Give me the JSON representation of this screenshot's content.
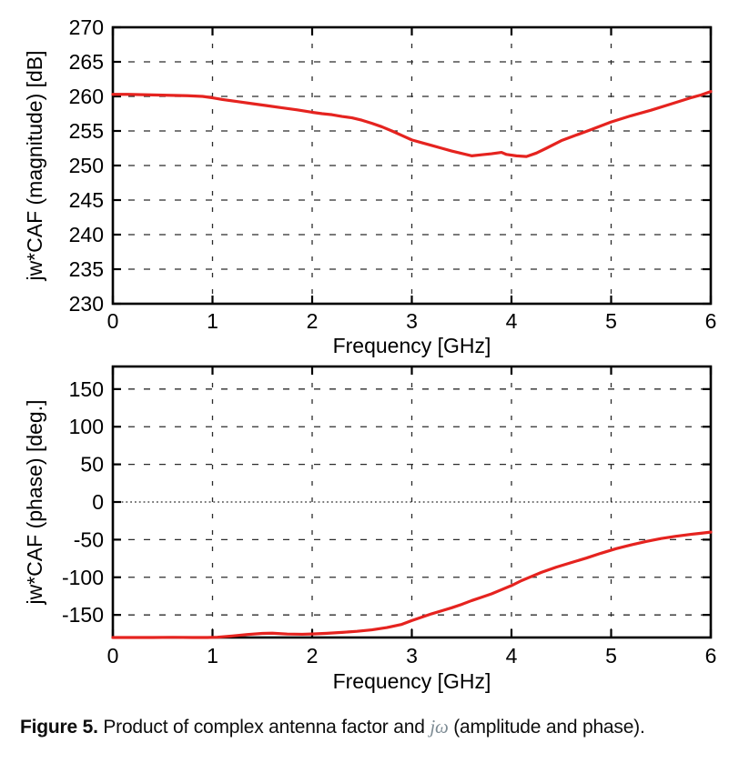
{
  "caption": {
    "label": "Figure 5.",
    "text_before": " Product of complex antenna factor and ",
    "math": "jω",
    "text_after": " (amplitude and phase)."
  },
  "chart_data": [
    {
      "type": "line",
      "title": "",
      "xlabel": "Frequency [GHz]",
      "ylabel": "jw*CAF (magnitude) [dB]",
      "xlim": [
        0,
        6
      ],
      "ylim": [
        230,
        270
      ],
      "xticks": [
        0,
        1,
        2,
        3,
        4,
        5,
        6
      ],
      "yticks": [
        230,
        235,
        240,
        245,
        250,
        255,
        260,
        265,
        270
      ],
      "grid": "dashed",
      "legend": "none",
      "line_color": "#e5231f",
      "grid_color": "#2b2b2b",
      "series": [
        {
          "name": "jw*CAF magnitude",
          "x": [
            0,
            0.15,
            0.3,
            0.45,
            0.6,
            0.75,
            0.9,
            1.0,
            1.1,
            1.25,
            1.4,
            1.55,
            1.7,
            1.85,
            2.0,
            2.1,
            2.2,
            2.3,
            2.4,
            2.5,
            2.6,
            2.7,
            2.8,
            2.9,
            3.0,
            3.1,
            3.2,
            3.3,
            3.4,
            3.5,
            3.6,
            3.7,
            3.8,
            3.9,
            3.95,
            4.05,
            4.15,
            4.25,
            4.35,
            4.5,
            4.65,
            4.8,
            5.0,
            5.2,
            5.4,
            5.6,
            5.8,
            5.9,
            6.0
          ],
          "y": [
            260.3,
            260.3,
            260.25,
            260.2,
            260.15,
            260.1,
            260.0,
            259.8,
            259.55,
            259.25,
            258.95,
            258.65,
            258.35,
            258.05,
            257.7,
            257.5,
            257.35,
            257.1,
            256.9,
            256.55,
            256.1,
            255.6,
            255.0,
            254.35,
            253.7,
            253.3,
            252.9,
            252.5,
            252.1,
            251.75,
            251.4,
            251.55,
            251.7,
            251.9,
            251.6,
            251.4,
            251.3,
            251.8,
            252.5,
            253.6,
            254.4,
            255.2,
            256.3,
            257.2,
            258.0,
            258.9,
            259.8,
            260.2,
            260.7
          ]
        }
      ]
    },
    {
      "type": "line",
      "title": "",
      "xlabel": "Frequency [GHz]",
      "ylabel": "jw*CAF (phase) [deg.]",
      "xlim": [
        0,
        6
      ],
      "ylim": [
        -180,
        180
      ],
      "xticks": [
        0,
        1,
        2,
        3,
        4,
        5,
        6
      ],
      "yticks": [
        -150,
        -100,
        -50,
        0,
        50,
        100,
        150
      ],
      "grid": "dashed",
      "zero_line": "dotted",
      "legend": "none",
      "line_color": "#e5231f",
      "grid_color": "#2b2b2b",
      "series": [
        {
          "name": "jw*CAF phase",
          "x": [
            0,
            0.2,
            0.4,
            0.6,
            0.8,
            0.95,
            1.05,
            1.2,
            1.35,
            1.5,
            1.6,
            1.75,
            1.9,
            2.0,
            2.15,
            2.3,
            2.45,
            2.6,
            2.75,
            2.9,
            3.0,
            3.1,
            3.2,
            3.3,
            3.4,
            3.5,
            3.6,
            3.7,
            3.8,
            3.9,
            4.0,
            4.1,
            4.2,
            4.3,
            4.45,
            4.6,
            4.75,
            4.9,
            5.05,
            5.2,
            5.35,
            5.5,
            5.65,
            5.8,
            5.9,
            6.0
          ],
          "y": [
            -180,
            -180,
            -180,
            -179.8,
            -180,
            -180,
            -179.6,
            -178,
            -176,
            -174.6,
            -174.3,
            -175.4,
            -175.7,
            -175.3,
            -174.4,
            -173.2,
            -171.8,
            -169.8,
            -166.8,
            -162.5,
            -157.5,
            -153,
            -148.5,
            -144.5,
            -140.5,
            -136,
            -131,
            -126.5,
            -122,
            -116.5,
            -111,
            -104.5,
            -99,
            -93.5,
            -86.5,
            -80.5,
            -74.5,
            -68,
            -62,
            -57,
            -52.5,
            -48.5,
            -45.5,
            -43,
            -41.5,
            -40
          ]
        }
      ]
    }
  ]
}
